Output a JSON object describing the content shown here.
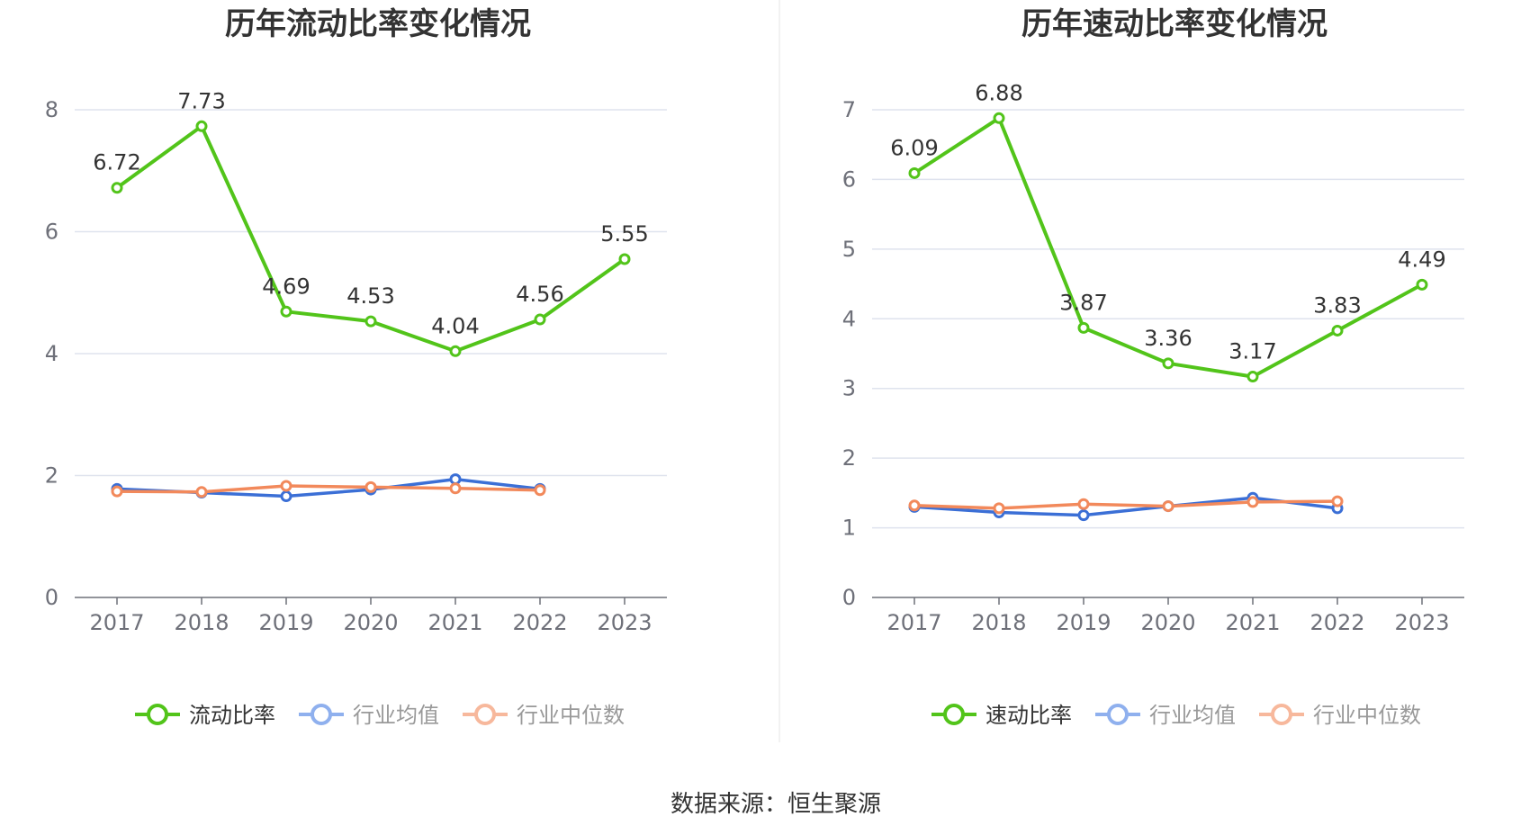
{
  "colors": {
    "main": "#52c41a",
    "avg": "#3b6fd6",
    "median": "#f2895b",
    "grid": "#dfe3ee",
    "axis": "#6e7079"
  },
  "chart_data": [
    {
      "type": "line",
      "title": "历年流动比率变化情况",
      "categories": [
        "2017",
        "2018",
        "2019",
        "2020",
        "2021",
        "2022",
        "2023"
      ],
      "ylim": [
        0,
        8
      ],
      "yticks": [
        0,
        2,
        4,
        6,
        8
      ],
      "series": [
        {
          "name": "流动比率",
          "values": [
            6.72,
            7.73,
            4.69,
            4.53,
            4.04,
            4.56,
            5.55
          ],
          "labels": [
            "6.72",
            "7.73",
            "4.69",
            "4.53",
            "4.04",
            "4.56",
            "5.55"
          ]
        },
        {
          "name": "行业均值",
          "values": [
            1.78,
            1.72,
            1.66,
            1.77,
            1.94,
            1.78,
            null
          ]
        },
        {
          "name": "行业中位数",
          "values": [
            1.74,
            1.73,
            1.83,
            1.81,
            1.79,
            1.76,
            null
          ]
        }
      ],
      "legend": "bottom-center",
      "grid": true
    },
    {
      "type": "line",
      "title": "历年速动比率变化情况",
      "categories": [
        "2017",
        "2018",
        "2019",
        "2020",
        "2021",
        "2022",
        "2023"
      ],
      "ylim": [
        0,
        7
      ],
      "yticks": [
        0,
        1,
        2,
        3,
        4,
        5,
        6,
        7
      ],
      "series": [
        {
          "name": "速动比率",
          "values": [
            6.09,
            6.88,
            3.87,
            3.36,
            3.17,
            3.83,
            4.49
          ],
          "labels": [
            "6.09",
            "6.88",
            "3.87",
            "3.36",
            "3.17",
            "3.83",
            "4.49"
          ]
        },
        {
          "name": "行业均值",
          "values": [
            1.3,
            1.22,
            1.18,
            1.31,
            1.43,
            1.28,
            null
          ]
        },
        {
          "name": "行业中位数",
          "values": [
            1.32,
            1.28,
            1.34,
            1.31,
            1.37,
            1.38,
            null
          ]
        }
      ],
      "legend": "bottom-center",
      "grid": true
    }
  ],
  "source": "数据来源：恒生聚源"
}
